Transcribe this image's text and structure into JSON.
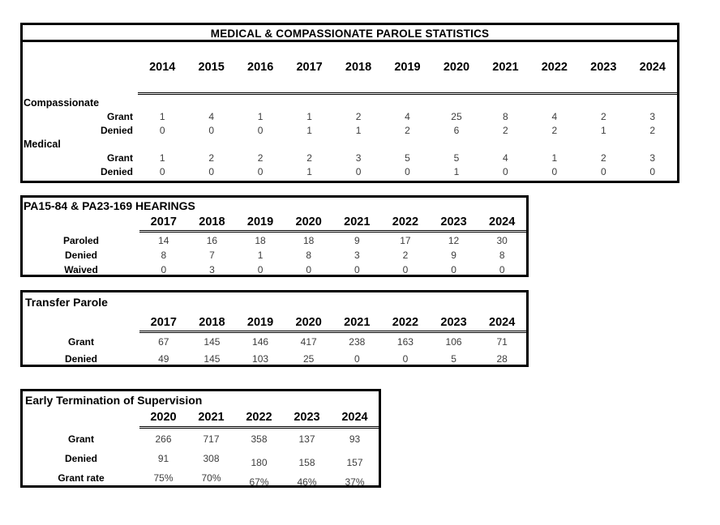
{
  "document": {
    "background": "#ffffff",
    "text_color": "#000000",
    "border_color": "#000000",
    "value_text_color": "#3d3d3d"
  },
  "tables": {
    "medical_compassionate": {
      "title": "MEDICAL & COMPASSIONATE PAROLE STATISTICS",
      "years": [
        "2014",
        "2015",
        "2016",
        "2017",
        "2018",
        "2019",
        "2020",
        "2021",
        "2022",
        "2023",
        "2024"
      ],
      "groups": [
        {
          "label": "Compassionate",
          "rows": [
            {
              "label": "Grant",
              "values": [
                "1",
                "4",
                "1",
                "1",
                "2",
                "4",
                "25",
                "8",
                "4",
                "2",
                "3"
              ]
            },
            {
              "label": "Denied",
              "values": [
                "0",
                "0",
                "0",
                "1",
                "1",
                "2",
                "6",
                "2",
                "2",
                "1",
                "2"
              ]
            }
          ]
        },
        {
          "label": "Medical",
          "rows": [
            {
              "label": "Grant",
              "values": [
                "1",
                "2",
                "2",
                "2",
                "3",
                "5",
                "5",
                "4",
                "1",
                "2",
                "3"
              ]
            },
            {
              "label": "Denied",
              "values": [
                "0",
                "0",
                "0",
                "1",
                "0",
                "0",
                "1",
                "0",
                "0",
                "0",
                "0"
              ]
            }
          ]
        }
      ]
    },
    "hearings": {
      "title": "PA15-84 & PA23-169 HEARINGS",
      "years": [
        "2017",
        "2018",
        "2019",
        "2020",
        "2021",
        "2022",
        "2023",
        "2024"
      ],
      "rows": [
        {
          "label": "Paroled",
          "values": [
            "14",
            "16",
            "18",
            "18",
            "9",
            "17",
            "12",
            "30"
          ]
        },
        {
          "label": "Denied",
          "values": [
            "8",
            "7",
            "1",
            "8",
            "3",
            "2",
            "9",
            "8"
          ]
        },
        {
          "label": "Waived",
          "values": [
            "0",
            "3",
            "0",
            "0",
            "0",
            "0",
            "0",
            "0"
          ]
        }
      ]
    },
    "transfer_parole": {
      "title": "Transfer Parole",
      "years": [
        "2017",
        "2018",
        "2019",
        "2020",
        "2021",
        "2022",
        "2023",
        "2024"
      ],
      "rows": [
        {
          "label": "Grant",
          "values": [
            "67",
            "145",
            "146",
            "417",
            "238",
            "163",
            "106",
            "71"
          ]
        },
        {
          "label": "Denied",
          "values": [
            "49",
            "145",
            "103",
            "25",
            "0",
            "0",
            "5",
            "28"
          ]
        }
      ]
    },
    "early_termination": {
      "title": "Early Termination of Supervision",
      "years": [
        "2020",
        "2021",
        "2022",
        "2023",
        "2024"
      ],
      "rows": [
        {
          "label": "Grant",
          "values": [
            "266",
            "717",
            "358",
            "137",
            "93"
          ]
        },
        {
          "label": "Denied",
          "values": [
            "91",
            "308",
            "180",
            "158",
            "157"
          ]
        },
        {
          "label": "Grant rate",
          "values": [
            "75%",
            "70%",
            "67%",
            "46%",
            "37%"
          ]
        }
      ]
    }
  }
}
